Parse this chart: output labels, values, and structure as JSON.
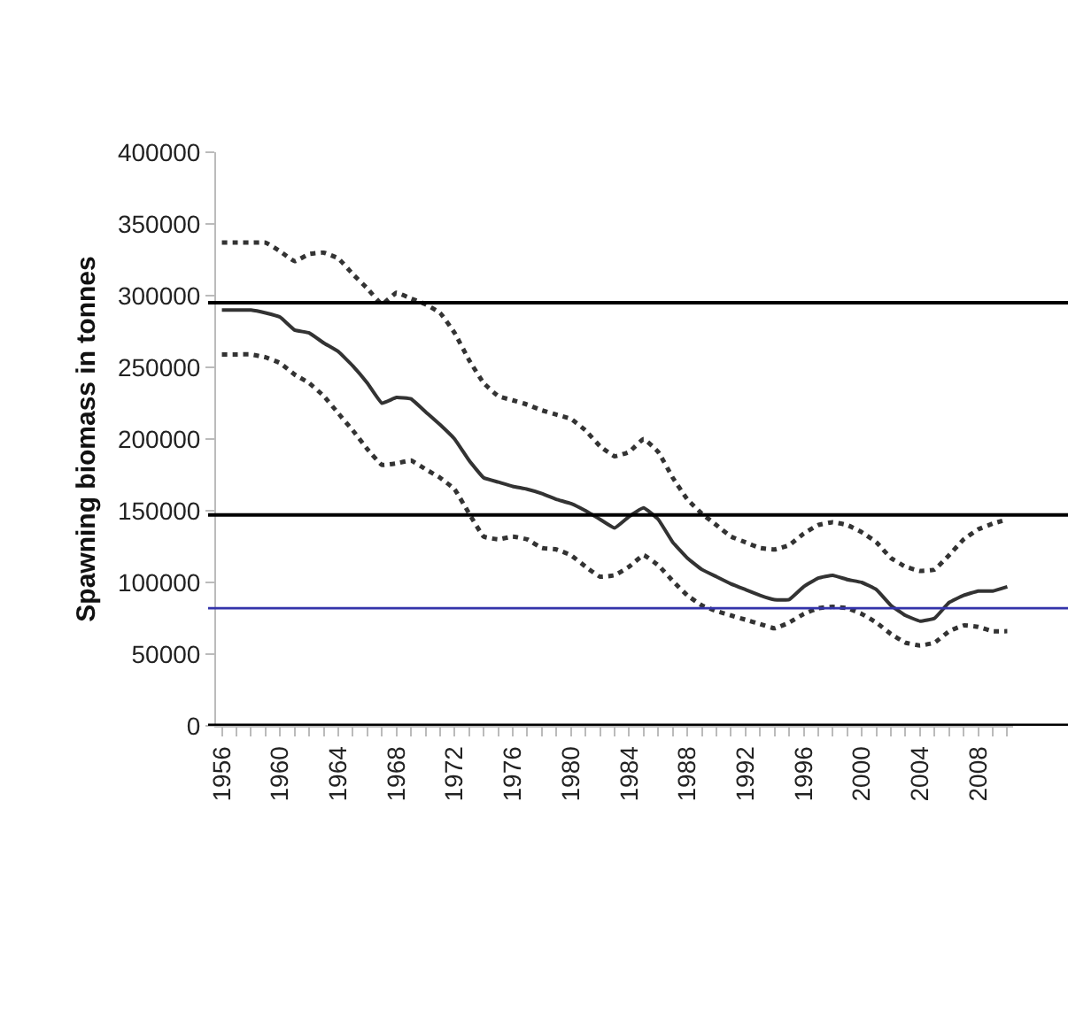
{
  "chart_data": {
    "type": "line",
    "ylabel": "Spawning biomass in tonnes",
    "x": [
      1956,
      1957,
      1958,
      1959,
      1960,
      1961,
      1962,
      1963,
      1964,
      1965,
      1966,
      1967,
      1968,
      1969,
      1970,
      1971,
      1972,
      1973,
      1974,
      1975,
      1976,
      1977,
      1978,
      1979,
      1980,
      1981,
      1982,
      1983,
      1984,
      1985,
      1986,
      1987,
      1988,
      1989,
      1990,
      1991,
      1992,
      1993,
      1994,
      1995,
      1996,
      1997,
      1998,
      1999,
      2000,
      2001,
      2002,
      2003,
      2004,
      2005,
      2006,
      2007,
      2008,
      2009,
      2010
    ],
    "series": [
      {
        "color": "#333333",
        "line_style": "solid",
        "values": [
          290000,
          290000,
          290000,
          288000,
          285000,
          276000,
          274000,
          267000,
          261000,
          251000,
          239000,
          225000,
          229000,
          228000,
          219000,
          210000,
          200000,
          185000,
          173000,
          170000,
          167000,
          165000,
          162000,
          158000,
          155000,
          150000,
          144000,
          138000,
          146000,
          152000,
          144000,
          128000,
          117000,
          109000,
          104000,
          99000,
          95000,
          91000,
          88000,
          88000,
          97000,
          103000,
          105000,
          102000,
          100000,
          95000,
          84000,
          77000,
          73000,
          75000,
          86000,
          91000,
          94000,
          94000,
          97000
        ]
      },
      {
        "color": "#333333",
        "line_style": "dotted",
        "values": [
          337000,
          337000,
          337000,
          337000,
          331000,
          324000,
          329000,
          330000,
          326000,
          315000,
          305000,
          294000,
          302000,
          298000,
          294000,
          288000,
          274000,
          255000,
          239000,
          230000,
          227000,
          224000,
          220000,
          217000,
          214000,
          206000,
          195000,
          188000,
          191000,
          200000,
          191000,
          173000,
          158000,
          148000,
          140000,
          132000,
          128000,
          124000,
          123000,
          126000,
          134000,
          140000,
          142000,
          140000,
          135000,
          128000,
          117000,
          111000,
          108000,
          109000,
          119000,
          130000,
          137000,
          141000,
          144000
        ]
      },
      {
        "color": "#333333",
        "line_style": "dotted",
        "values": [
          259000,
          259000,
          259000,
          257000,
          253000,
          245000,
          239000,
          230000,
          218000,
          206000,
          193000,
          182000,
          183000,
          185000,
          179000,
          173000,
          165000,
          148000,
          132000,
          130000,
          132000,
          130000,
          124000,
          123000,
          119000,
          111000,
          104000,
          105000,
          111000,
          119000,
          112000,
          101000,
          91000,
          84000,
          80000,
          77000,
          74000,
          71000,
          68000,
          72000,
          78000,
          82000,
          83000,
          82000,
          78000,
          72000,
          64000,
          58000,
          56000,
          58000,
          66000,
          70000,
          69000,
          66000,
          66000
        ]
      }
    ],
    "xlim": [
      1955.6,
      2010.4
    ],
    "xticks": [
      {
        "value": 1956,
        "label": "1956"
      },
      {
        "value": 1957,
        "label": null
      },
      {
        "value": 1958,
        "label": null
      },
      {
        "value": 1959,
        "label": null
      },
      {
        "value": 1960,
        "label": "1960"
      },
      {
        "value": 1961,
        "label": null
      },
      {
        "value": 1962,
        "label": null
      },
      {
        "value": 1963,
        "label": null
      },
      {
        "value": 1964,
        "label": "1964"
      },
      {
        "value": 1965,
        "label": null
      },
      {
        "value": 1966,
        "label": null
      },
      {
        "value": 1967,
        "label": null
      },
      {
        "value": 1968,
        "label": "1968"
      },
      {
        "value": 1969,
        "label": null
      },
      {
        "value": 1970,
        "label": null
      },
      {
        "value": 1971,
        "label": null
      },
      {
        "value": 1972,
        "label": "1972"
      },
      {
        "value": 1973,
        "label": null
      },
      {
        "value": 1974,
        "label": null
      },
      {
        "value": 1975,
        "label": null
      },
      {
        "value": 1976,
        "label": "1976"
      },
      {
        "value": 1977,
        "label": null
      },
      {
        "value": 1978,
        "label": null
      },
      {
        "value": 1979,
        "label": null
      },
      {
        "value": 1980,
        "label": "1980"
      },
      {
        "value": 1981,
        "label": null
      },
      {
        "value": 1982,
        "label": null
      },
      {
        "value": 1983,
        "label": null
      },
      {
        "value": 1984,
        "label": "1984"
      },
      {
        "value": 1985,
        "label": null
      },
      {
        "value": 1986,
        "label": null
      },
      {
        "value": 1987,
        "label": null
      },
      {
        "value": 1988,
        "label": "1988"
      },
      {
        "value": 1989,
        "label": null
      },
      {
        "value": 1990,
        "label": null
      },
      {
        "value": 1991,
        "label": null
      },
      {
        "value": 1992,
        "label": "1992"
      },
      {
        "value": 1993,
        "label": null
      },
      {
        "value": 1994,
        "label": null
      },
      {
        "value": 1995,
        "label": null
      },
      {
        "value": 1996,
        "label": "1996"
      },
      {
        "value": 1997,
        "label": null
      },
      {
        "value": 1998,
        "label": null
      },
      {
        "value": 1999,
        "label": null
      },
      {
        "value": 2000,
        "label": "2000"
      },
      {
        "value": 2001,
        "label": null
      },
      {
        "value": 2002,
        "label": null
      },
      {
        "value": 2003,
        "label": null
      },
      {
        "value": 2004,
        "label": "2004"
      },
      {
        "value": 2005,
        "label": null
      },
      {
        "value": 2006,
        "label": null
      },
      {
        "value": 2007,
        "label": null
      },
      {
        "value": 2008,
        "label": "2008"
      },
      {
        "value": 2009,
        "label": null
      },
      {
        "value": 2010,
        "label": null
      }
    ],
    "ylim": [
      0,
      400000
    ],
    "yticks": [
      0,
      50000,
      100000,
      150000,
      200000,
      250000,
      300000,
      350000,
      400000
    ],
    "ref_lines": [
      {
        "axis": "y",
        "value": 295000,
        "color": "#000000"
      },
      {
        "axis": "y",
        "value": 147000,
        "color": "#000000"
      },
      {
        "axis": "y",
        "value": 82000,
        "color": "#3333aa"
      }
    ],
    "marker": "none"
  }
}
